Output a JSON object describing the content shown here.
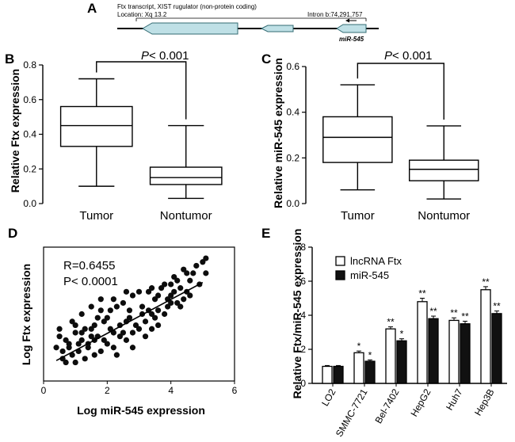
{
  "panel_labels": {
    "a": "A",
    "b": "B",
    "c": "C",
    "d": "D",
    "e": "E"
  },
  "schematic": {
    "title": "Ftx transcript, XIST rugulator (non-protein coding)",
    "location": "Location: Xq 13.2",
    "intron": "Intron b:74,291,757",
    "mir": "miR-545"
  },
  "chart_data": [
    {
      "id": "B",
      "type": "box",
      "title": "",
      "xlabel": "",
      "ylabel": "Relative Ftx expression",
      "ylim": [
        0,
        0.8
      ],
      "yticks": [
        "0.0",
        "0.2",
        "0.4",
        "0.6",
        "0.8"
      ],
      "categories": [
        "Tumor",
        "Nontumor"
      ],
      "boxes": [
        {
          "name": "Tumor",
          "min": 0.1,
          "q1": 0.33,
          "median": 0.45,
          "q3": 0.56,
          "max": 0.72
        },
        {
          "name": "Nontumor",
          "min": 0.03,
          "q1": 0.11,
          "median": 0.15,
          "q3": 0.21,
          "max": 0.45
        }
      ],
      "annotation": {
        "p_label": "P",
        "p_value": "< 0.001"
      }
    },
    {
      "id": "C",
      "type": "box",
      "title": "",
      "xlabel": "",
      "ylabel": "Relative miR-545 expression",
      "ylim": [
        0,
        0.6
      ],
      "yticks": [
        "0.0",
        "0.2",
        "0.4",
        "0.6"
      ],
      "categories": [
        "Tumor",
        "Nontumor"
      ],
      "boxes": [
        {
          "name": "Tumor",
          "min": 0.06,
          "q1": 0.18,
          "median": 0.29,
          "q3": 0.38,
          "max": 0.52
        },
        {
          "name": "Nontumor",
          "min": 0.02,
          "q1": 0.1,
          "median": 0.15,
          "q3": 0.19,
          "max": 0.34
        }
      ],
      "annotation": {
        "p_label": "P",
        "p_value": "< 0.001"
      }
    },
    {
      "id": "D",
      "type": "scatter",
      "title": "",
      "xlabel": "Log miR-545 expression",
      "ylabel": "Log Ftx expression",
      "xlim": [
        0,
        6
      ],
      "xticks": [
        "0",
        "2",
        "4",
        "6"
      ],
      "stats": {
        "r": "R=0.6455",
        "p": "P< 0.0001"
      },
      "fit_line": {
        "x": [
          0.4,
          5.0
        ],
        "y": [
          0.55,
          2.65
        ]
      },
      "points_x": [
        0.4,
        0.5,
        0.6,
        0.5,
        0.7,
        0.8,
        0.9,
        1.0,
        0.9,
        1.1,
        1.2,
        1.3,
        1.2,
        1.4,
        1.5,
        1.6,
        1.5,
        1.7,
        1.8,
        1.9,
        2.0,
        2.1,
        2.2,
        2.3,
        2.4,
        2.5,
        2.6,
        2.7,
        2.8,
        3.0,
        3.1,
        3.2,
        3.3,
        3.4,
        3.5,
        3.6,
        3.8,
        3.9,
        4.0,
        4.1,
        4.2,
        4.3,
        4.4,
        4.5,
        4.6,
        4.7,
        4.8,
        4.9,
        5.0,
        5.1,
        0.6,
        0.8,
        1.0,
        1.2,
        1.4,
        1.6,
        1.8,
        2.0,
        2.2,
        2.4,
        2.6,
        2.8,
        3.0,
        3.2,
        3.4,
        3.6,
        3.8,
        4.0,
        4.2,
        4.4,
        1.1,
        1.3,
        1.5,
        1.7,
        1.9,
        2.1,
        2.3,
        2.5,
        2.7,
        2.9,
        3.1,
        3.3,
        3.5,
        3.7,
        3.9,
        4.1,
        4.3,
        4.5,
        0.7,
        1.0,
        1.6,
        2.2,
        2.8,
        3.4,
        4.0,
        4.6,
        5.1,
        1.8,
        2.6,
        3.6
      ],
      "points_y": [
        0.9,
        1.2,
        0.6,
        1.4,
        0.5,
        1.0,
        0.7,
        1.3,
        1.6,
        0.8,
        1.1,
        0.6,
        1.8,
        0.9,
        1.4,
        0.7,
        2.0,
        1.2,
        0.8,
        1.6,
        1.0,
        1.9,
        1.3,
        0.7,
        1.5,
        2.1,
        1.1,
        1.7,
        2.3,
        1.4,
        2.0,
        1.6,
        2.4,
        1.8,
        2.2,
        1.5,
        2.6,
        2.0,
        2.3,
        2.8,
        2.1,
        2.5,
        3.0,
        2.4,
        2.7,
        2.9,
        3.1,
        2.6,
        3.2,
        3.3,
        0.8,
        0.9,
        1.5,
        1.3,
        1.0,
        1.5,
        1.9,
        1.7,
        0.9,
        1.2,
        1.6,
        1.3,
        2.4,
        1.2,
        1.4,
        2.3,
        1.8,
        2.6,
        2.7,
        2.2,
        1.0,
        1.4,
        1.2,
        1.7,
        1.1,
        1.4,
        2.0,
        1.3,
        1.9,
        1.5,
        1.8,
        1.9,
        1.7,
        2.5,
        2.2,
        2.4,
        2.0,
        2.9,
        1.1,
        0.5,
        1.1,
        2.2,
        0.9,
        2.5,
        2.1,
        2.3,
        2.9,
        2.2,
        2.4,
        1.9
      ]
    },
    {
      "id": "E",
      "type": "bar",
      "title": "",
      "xlabel": "",
      "ylabel": "Relative Ftx/miR-545 expression",
      "ylim": [
        0,
        8
      ],
      "yticks": [
        "0",
        "2",
        "4",
        "6",
        "8"
      ],
      "categories": [
        "LO2",
        "SMMC-7721",
        "Bel-7402",
        "HepG2",
        "Huh7",
        "Hep3B"
      ],
      "series": [
        {
          "name": "lncRNA Ftx",
          "color": "#ffffff",
          "values": [
            1.0,
            1.8,
            3.2,
            4.8,
            3.7,
            5.5
          ],
          "errors": [
            0.05,
            0.1,
            0.12,
            0.2,
            0.15,
            0.18
          ],
          "sig": [
            "",
            "*",
            "**",
            "**",
            "**",
            "**"
          ]
        },
        {
          "name": "miR-545",
          "color": "#111111",
          "values": [
            1.0,
            1.3,
            2.5,
            3.8,
            3.5,
            4.1
          ],
          "errors": [
            0.05,
            0.08,
            0.12,
            0.15,
            0.15,
            0.15
          ],
          "sig": [
            "",
            "*",
            "*",
            "**",
            "**",
            "**"
          ]
        }
      ]
    }
  ]
}
